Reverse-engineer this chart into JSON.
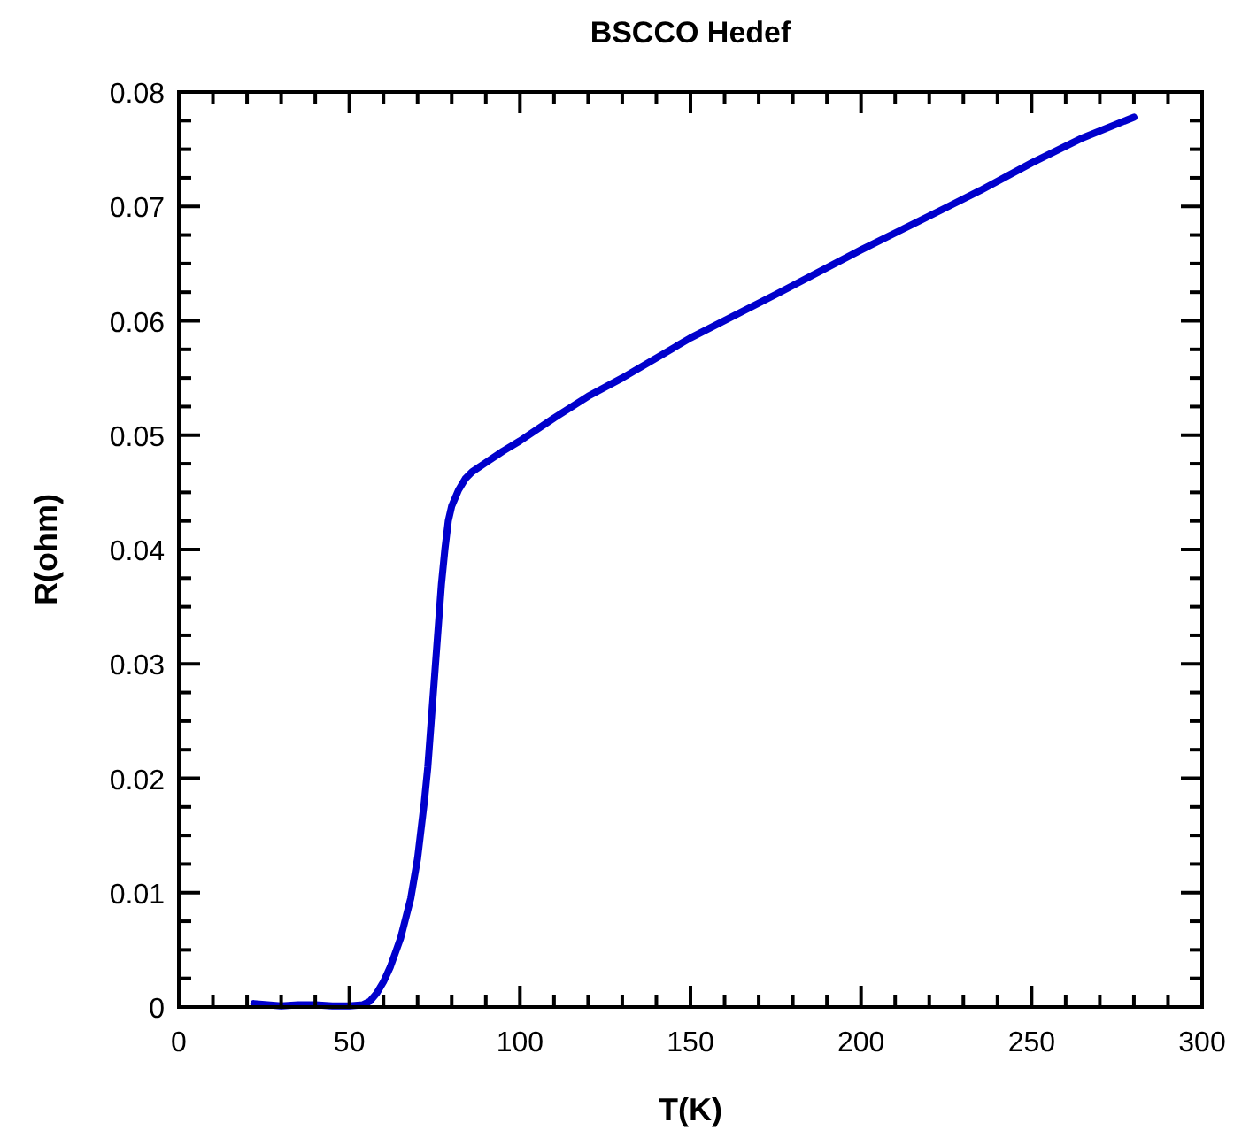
{
  "chart_data": {
    "type": "line",
    "title": "BSCCO Hedef",
    "xlabel": "T(K)",
    "ylabel": "R(ohm)",
    "xlim": [
      0,
      300
    ],
    "xticks": [
      0,
      50,
      100,
      150,
      200,
      250,
      300
    ],
    "ylim": [
      0,
      0.08
    ],
    "yticks": [
      0,
      0.01,
      0.02,
      0.03,
      0.04,
      0.05,
      0.06,
      0.07,
      0.08
    ],
    "grid": false,
    "marker": "none",
    "line_style": "solid",
    "series": [
      {
        "color": "#0000cc",
        "x": [
          22,
          26,
          30,
          35,
          40,
          45,
          50,
          54,
          56,
          58,
          60,
          62,
          65,
          68,
          70,
          72,
          73,
          74,
          75,
          76,
          77,
          78,
          79,
          80,
          82,
          84,
          86,
          90,
          95,
          100,
          110,
          120,
          130,
          150,
          175,
          200,
          225,
          235,
          250,
          265,
          280
        ],
        "values": [
          0.0003,
          0.0002,
          0.0001,
          0.0002,
          0.0002,
          0.0001,
          0.0001,
          0.0002,
          0.0005,
          0.0012,
          0.0022,
          0.0035,
          0.006,
          0.0095,
          0.013,
          0.018,
          0.021,
          0.025,
          0.029,
          0.033,
          0.037,
          0.04,
          0.0425,
          0.0438,
          0.0452,
          0.0462,
          0.0468,
          0.0476,
          0.0486,
          0.0495,
          0.0515,
          0.0534,
          0.055,
          0.0585,
          0.0623,
          0.0662,
          0.0699,
          0.0714,
          0.0738,
          0.076,
          0.0778
        ]
      }
    ]
  }
}
